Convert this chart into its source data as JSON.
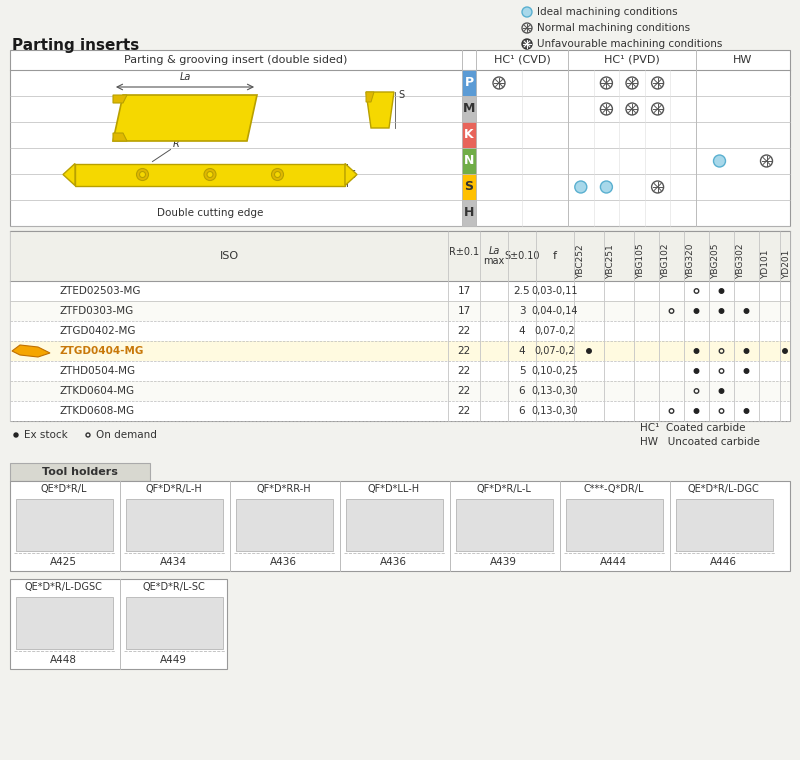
{
  "title": "Parting inserts",
  "bg_color": "#f2f2ee",
  "insert_label": "Parting & grooving insert (double sided)",
  "material_rows": [
    "P",
    "M",
    "K",
    "N",
    "S",
    "H"
  ],
  "mat_colors": {
    "P": "#5b9bd5",
    "M": "#bfbfbf",
    "K": "#e8645a",
    "N": "#70ad47",
    "S": "#ffc000",
    "H": "#c0c0c0"
  },
  "mat_text_colors": {
    "P": "white",
    "M": "#444",
    "K": "white",
    "N": "white",
    "S": "#444",
    "H": "#444"
  },
  "cvd_grades": [
    "YBC252",
    "YBC251"
  ],
  "pvd_grades": [
    "YBG105",
    "YBG102",
    "YBG320",
    "YBG205",
    "YBG302"
  ],
  "hw_grades": [
    "YD101",
    "YD201"
  ],
  "mat_symbols": {
    "P": {
      "CVD": [
        "normal",
        ""
      ],
      "PVD": [
        "",
        "normal",
        "normal",
        "normal",
        ""
      ],
      "HW": [
        "",
        ""
      ]
    },
    "M": {
      "CVD": [
        "",
        ""
      ],
      "PVD": [
        "",
        "normal",
        "normal",
        "normal",
        ""
      ],
      "HW": [
        "",
        ""
      ]
    },
    "K": {
      "CVD": [
        "",
        ""
      ],
      "PVD": [
        "",
        "",
        "",
        "",
        ""
      ],
      "HW": [
        "",
        ""
      ]
    },
    "N": {
      "CVD": [
        "",
        ""
      ],
      "PVD": [
        "",
        "",
        "",
        "",
        ""
      ],
      "HW": [
        "ideal",
        "normal"
      ]
    },
    "S": {
      "CVD": [
        "",
        ""
      ],
      "PVD": [
        "ideal",
        "ideal",
        "",
        "normal",
        ""
      ],
      "HW": [
        "",
        ""
      ]
    },
    "H": {
      "CVD": [
        "",
        ""
      ],
      "PVD": [
        "",
        "",
        "",
        "",
        ""
      ],
      "HW": [
        "",
        ""
      ]
    }
  },
  "iso_rows": [
    {
      "iso": "ZTED02503-MG",
      "la": 17,
      "s": 2.5,
      "f": "0,03-0,11",
      "cvd252": "",
      "cvd251": "",
      "ybg105": "",
      "ybg102": "",
      "ybg320": "dot_open",
      "ybg205": "dot_filled",
      "ybg302": "",
      "yd101": "",
      "yd201": ""
    },
    {
      "iso": "ZTFD0303-MG",
      "la": 17,
      "s": 3,
      "f": "0,04-0,14",
      "cvd252": "",
      "cvd251": "",
      "ybg105": "",
      "ybg102": "dot_open",
      "ybg320": "dot_filled",
      "ybg205": "dot_filled",
      "ybg302": "dot_filled",
      "yd101": "",
      "yd201": ""
    },
    {
      "iso": "ZTGD0402-MG",
      "la": 22,
      "s": 4,
      "f": "0,07-0,2",
      "cvd252": "",
      "cvd251": "",
      "ybg105": "",
      "ybg102": "",
      "ybg320": "",
      "ybg205": "",
      "ybg302": "",
      "yd101": "",
      "yd201": ""
    },
    {
      "iso": "ZTGD0404-MG",
      "la": 22,
      "s": 4,
      "f": "0,07-0,2",
      "cvd252": "dot_filled",
      "cvd251": "",
      "ybg105": "",
      "ybg102": "",
      "ybg320": "dot_filled",
      "ybg205": "dot_open",
      "ybg302": "dot_filled",
      "yd101": "",
      "yd201": "dot_filled",
      "highlight": true
    },
    {
      "iso": "ZTHD0504-MG",
      "la": 22,
      "s": 5,
      "f": "0,10-0,25",
      "cvd252": "",
      "cvd251": "",
      "ybg105": "",
      "ybg102": "",
      "ybg320": "dot_filled",
      "ybg205": "dot_open",
      "ybg302": "dot_filled",
      "yd101": "",
      "yd201": ""
    },
    {
      "iso": "ZTKD0604-MG",
      "la": 22,
      "s": 6,
      "f": "0,13-0,30",
      "cvd252": "",
      "cvd251": "",
      "ybg105": "",
      "ybg102": "",
      "ybg320": "dot_open",
      "ybg205": "dot_filled",
      "ybg302": "",
      "yd101": "",
      "yd201": ""
    },
    {
      "iso": "ZTKD0608-MG",
      "la": 22,
      "s": 6,
      "f": "0,13-0,30",
      "cvd252": "",
      "cvd251": "",
      "ybg105": "",
      "ybg102": "dot_open",
      "ybg320": "dot_filled",
      "ybg205": "dot_open",
      "ybg302": "dot_filled",
      "yd101": "",
      "yd201": ""
    }
  ],
  "tool_holders_row1": [
    {
      "name": "QE*D*R/L",
      "code": "A425"
    },
    {
      "name": "QF*D*R/L-H",
      "code": "A434"
    },
    {
      "name": "QF*D*RR-H",
      "code": "A436"
    },
    {
      "name": "QF*D*LL-H",
      "code": "A436"
    },
    {
      "name": "QF*D*R/L-L",
      "code": "A439"
    },
    {
      "name": "C***-Q*DR/L",
      "code": "A444"
    },
    {
      "name": "QE*D*R/L-DGC",
      "code": "A446"
    }
  ],
  "tool_holders_row2": [
    {
      "name": "QE*D*R/L-DGSC",
      "code": "A448"
    },
    {
      "name": "QE*D*R/L-SC",
      "code": "A449"
    }
  ]
}
